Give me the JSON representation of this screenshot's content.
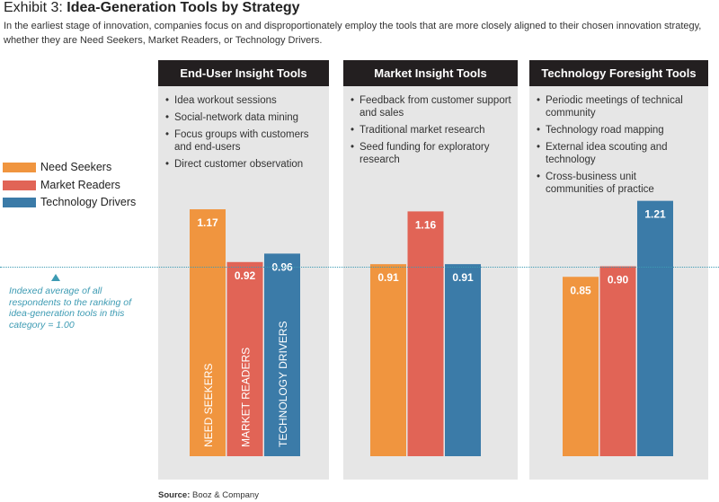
{
  "header": {
    "exhibit": "Exhibit 3: ",
    "title": "Idea-Generation Tools by Strategy",
    "subtitle": "In the earliest stage of innovation, companies focus on and disproportionately employ the tools that are more closely aligned to their chosen innovation strategy, whether they are Need Seekers, Market Readers, or Technology Drivers."
  },
  "panels": [
    {
      "title": "End-User Insight Tools",
      "tools": [
        "Idea workout sessions",
        "Social-network data mining",
        "Focus groups with customers and end-users",
        "Direct customer observation"
      ]
    },
    {
      "title": "Market Insight Tools",
      "tools": [
        "Feedback from customer support and sales",
        "Traditional market research",
        "Seed funding for exploratory research"
      ]
    },
    {
      "title": "Technology Foresight Tools",
      "tools": [
        "Periodic meetings of technical community",
        "Technology road mapping",
        "External idea scouting and technology",
        "Cross-business unit communities of practice"
      ]
    }
  ],
  "legend": [
    "Need Seekers",
    "Market Readers",
    "Technology Drivers"
  ],
  "bar_labels": [
    "NEED SEEKERS",
    "MARKET READERS",
    "TECHNOLOGY DRIVERS"
  ],
  "average_note": "Indexed average of all respondents to the ranking of idea-generation tools in this category = 1.00",
  "source": {
    "label": "Source:",
    "text": " Booz & Company"
  },
  "colors": {
    "need_seekers": "#f0953f",
    "market_readers": "#e16456",
    "technology_drivers": "#3b7ba8",
    "average_line": "#3d9bb3"
  },
  "chart_data": {
    "type": "bar",
    "categories": [
      "End-User Insight Tools",
      "Market Insight Tools",
      "Technology Foresight Tools"
    ],
    "series": [
      {
        "name": "Need Seekers",
        "values": [
          1.17,
          0.91,
          0.85
        ]
      },
      {
        "name": "Market Readers",
        "values": [
          0.92,
          1.16,
          0.9
        ]
      },
      {
        "name": "Technology Drivers",
        "values": [
          0.96,
          0.91,
          1.21
        ]
      }
    ],
    "reference_line": 1.0,
    "legend_position": "left"
  }
}
